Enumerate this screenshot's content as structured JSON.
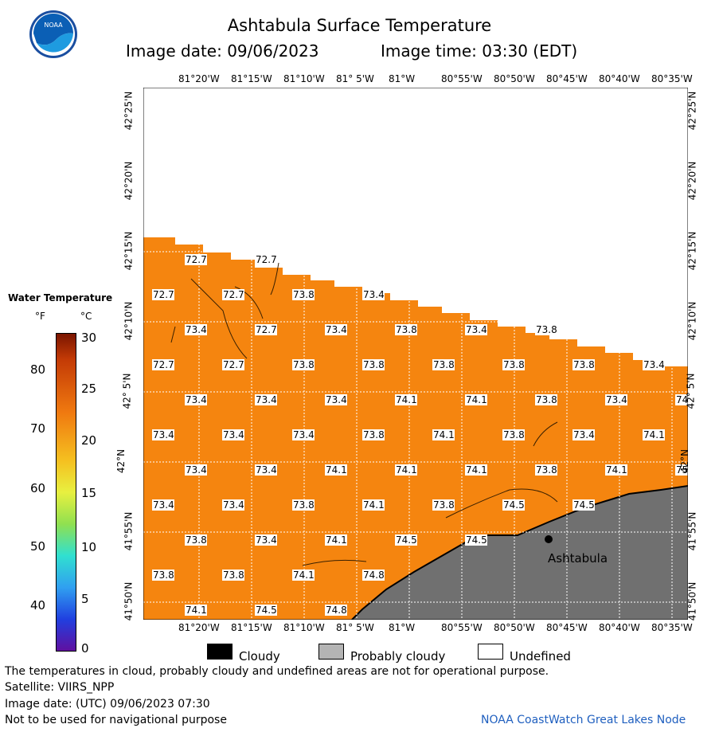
{
  "header": {
    "title": "Ashtabula Surface Temperature",
    "date_label": "Image date: 09/06/2023",
    "time_label": "Image time: 03:30 (EDT)"
  },
  "logo": {
    "text": "NOAA"
  },
  "legend": {
    "title": "Water Temperature",
    "unit_f": "°F",
    "unit_c": "°C",
    "f_ticks": [
      "80",
      "70",
      "60",
      "50",
      "40"
    ],
    "c_ticks": [
      "30",
      "25",
      "20",
      "15",
      "10",
      "5",
      "0"
    ]
  },
  "map": {
    "lon_labels": [
      "81°20'W",
      "81°15'W",
      "81°10'W",
      "81° 5'W",
      "81°W",
      "80°55'W",
      "80°50'W",
      "80°45'W",
      "80°40'W",
      "80°35'W"
    ],
    "lat_labels": [
      "42°25'N",
      "42°20'N",
      "42°15'N",
      "42°10'N",
      "42° 5'N",
      "42°N",
      "41°55'N",
      "41°50'N"
    ],
    "city": "Ashtabula",
    "readings": [
      [
        "72.7",
        "72.7"
      ],
      [
        "72.7",
        "72.7",
        "73.8",
        "73.4"
      ],
      [
        "73.4",
        "72.7",
        "73.4",
        "73.8",
        "73.4",
        "73.8"
      ],
      [
        "72.7",
        "72.7",
        "73.8",
        "73.8",
        "73.8",
        "73.8",
        "73.8",
        "73.4"
      ],
      [
        "73.4",
        "73.4",
        "73.4",
        "74.1",
        "74.1",
        "73.8",
        "73.4",
        "74"
      ],
      [
        "73.4",
        "73.4",
        "73.4",
        "73.8",
        "74.1",
        "73.8",
        "73.4",
        "74.1"
      ],
      [
        "73.4",
        "73.4",
        "74.1",
        "74.1",
        "74.1",
        "73.8",
        "74.1",
        "75"
      ],
      [
        "73.4",
        "73.4",
        "73.8",
        "74.1",
        "73.8",
        "74.5",
        "74.5"
      ],
      [
        "73.8",
        "73.4",
        "74.1",
        "74.5",
        "74.5"
      ],
      [
        "73.8",
        "73.8",
        "74.1",
        "74.8"
      ],
      [
        "74.1",
        "74.5",
        "74.8"
      ]
    ]
  },
  "cloud_legend": {
    "cloudy": "Cloudy",
    "probably_cloudy": "Probably cloudy",
    "undefined": "Undefined"
  },
  "footer": {
    "note": "The temperatures in cloud, probably cloudy and undefined areas are not for operational purpose.",
    "satellite": "Satellite: VIIRS_NPP",
    "utc_date": "Image date: (UTC) 09/06/2023  07:30",
    "nav_warning": "Not to be used for navigational purpose",
    "credit": "NOAA CoastWatch Great Lakes Node"
  },
  "colors": {
    "water": "#f5850f",
    "land": "#707070",
    "grid": "#ffffff",
    "cloudy": "#000000",
    "probably_cloudy": "#b4b4b4"
  }
}
